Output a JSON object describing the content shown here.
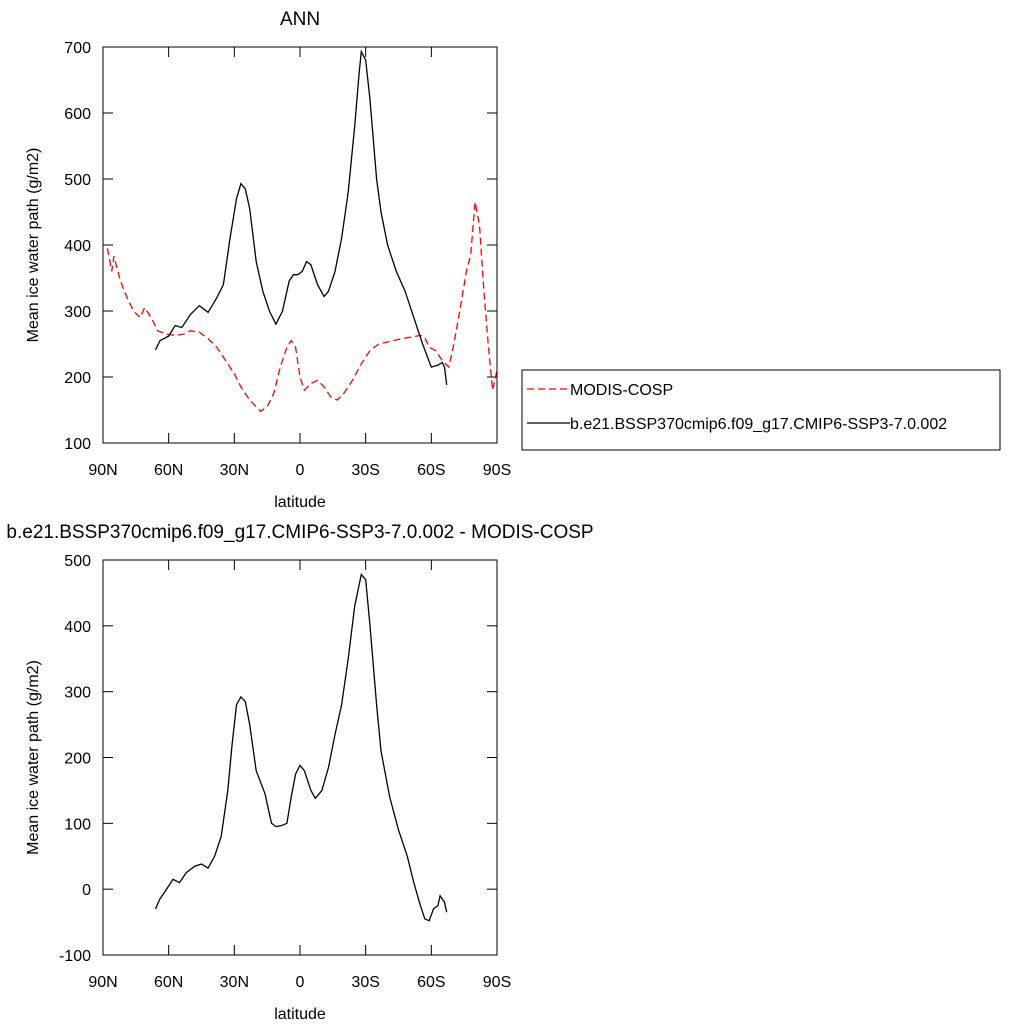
{
  "chart_data": [
    {
      "type": "line",
      "title": "ANN",
      "xlabel": "latitude",
      "ylabel": "Mean ice water path (g/m2)",
      "xlim": [
        90,
        -90
      ],
      "ylim": [
        100,
        700
      ],
      "xticks": [
        {
          "value": 90,
          "label": "90N"
        },
        {
          "value": 60,
          "label": "60N"
        },
        {
          "value": 30,
          "label": "30N"
        },
        0,
        {
          "value": -30,
          "label": "30S"
        },
        {
          "value": -60,
          "label": "60S"
        },
        {
          "value": -90,
          "label": "90S"
        }
      ],
      "yticks": [
        100,
        200,
        300,
        400,
        500,
        600,
        700
      ],
      "legend": "right",
      "series": [
        {
          "name": "MODIS-COSP",
          "color": "#ff0000",
          "dashed": true,
          "x": [
            88,
            86,
            85,
            82,
            79,
            76,
            73,
            71,
            68,
            65,
            61,
            57,
            53,
            50,
            46,
            42,
            38,
            34,
            30,
            27,
            23,
            20,
            18,
            15,
            12,
            9,
            6,
            4,
            2,
            0,
            -2,
            -5,
            -8,
            -11,
            -14,
            -17,
            -20,
            -24,
            -28,
            -32,
            -36,
            -40,
            -45,
            -50,
            -55,
            -57,
            -59,
            -62,
            -65,
            -68,
            -70,
            -73,
            -76,
            -78,
            -80,
            -82,
            -84,
            -86,
            -88,
            -90
          ],
          "values": [
            395,
            360,
            383,
            345,
            320,
            300,
            290,
            305,
            290,
            270,
            265,
            263,
            265,
            270,
            268,
            258,
            245,
            225,
            205,
            185,
            165,
            155,
            148,
            155,
            175,
            215,
            245,
            255,
            245,
            200,
            180,
            190,
            195,
            185,
            170,
            165,
            175,
            195,
            220,
            240,
            250,
            253,
            257,
            260,
            263,
            260,
            245,
            240,
            225,
            215,
            245,
            300,
            360,
            385,
            465,
            430,
            330,
            250,
            180,
            210
          ]
        },
        {
          "name": "b.e21.BSSP370cmip6.f09_g17.CMIP6-SSP3-7.0.002",
          "color": "#000000",
          "dashed": false,
          "x": [
            66,
            64,
            60,
            57,
            54,
            50,
            46,
            42,
            38,
            35,
            32,
            29,
            27,
            25,
            23,
            20,
            17,
            14,
            11,
            8,
            5,
            3,
            1,
            -1,
            -3,
            -5,
            -8,
            -11,
            -13,
            -16,
            -19,
            -22,
            -25,
            -27,
            -28,
            -30,
            -32,
            -35,
            -37,
            -40,
            -44,
            -48,
            -52,
            -56,
            -60,
            -63,
            -65,
            -66,
            -67
          ],
          "values": [
            241,
            255,
            262,
            278,
            275,
            295,
            308,
            298,
            320,
            340,
            410,
            470,
            493,
            485,
            455,
            375,
            330,
            300,
            280,
            300,
            345,
            355,
            355,
            360,
            375,
            370,
            340,
            322,
            330,
            360,
            410,
            480,
            580,
            660,
            693,
            680,
            620,
            500,
            450,
            400,
            360,
            330,
            290,
            250,
            215,
            218,
            222,
            215,
            188
          ]
        }
      ]
    },
    {
      "type": "line",
      "title": "b.e21.BSSP370cmip6.f09_g17.CMIP6-SSP3-7.0.002 - MODIS-COSP",
      "xlabel": "latitude",
      "ylabel": "Mean ice water path (g/m2)",
      "xlim": [
        90,
        -90
      ],
      "ylim": [
        -100,
        500
      ],
      "xticks": [
        {
          "value": 90,
          "label": "90N"
        },
        {
          "value": 60,
          "label": "60N"
        },
        {
          "value": 30,
          "label": "30N"
        },
        0,
        {
          "value": -30,
          "label": "30S"
        },
        {
          "value": -60,
          "label": "60S"
        },
        {
          "value": -90,
          "label": "90S"
        }
      ],
      "yticks": [
        -100,
        0,
        100,
        200,
        300,
        400,
        500
      ],
      "series": [
        {
          "color": "#000000",
          "dashed": false,
          "x": [
            66,
            64,
            61,
            58,
            55,
            52,
            48,
            45,
            42,
            39,
            36,
            33,
            31,
            29,
            27,
            25,
            23,
            20,
            16,
            13,
            11,
            8,
            6,
            4,
            2,
            0,
            -2,
            -5,
            -7,
            -10,
            -13,
            -16,
            -19,
            -22,
            -25,
            -28,
            -30,
            -32,
            -35,
            -37,
            -41,
            -45,
            -49,
            -52,
            -55,
            -57,
            -59,
            -61,
            -63,
            -64,
            -65,
            -66,
            -67
          ],
          "values": [
            -30,
            -15,
            0,
            15,
            10,
            25,
            35,
            38,
            32,
            50,
            80,
            150,
            220,
            280,
            292,
            285,
            250,
            180,
            145,
            100,
            95,
            97,
            100,
            140,
            175,
            188,
            180,
            150,
            138,
            150,
            185,
            235,
            280,
            350,
            430,
            478,
            470,
            400,
            280,
            210,
            140,
            90,
            50,
            10,
            -25,
            -45,
            -48,
            -30,
            -25,
            -10,
            -15,
            -20,
            -35
          ]
        }
      ]
    }
  ]
}
